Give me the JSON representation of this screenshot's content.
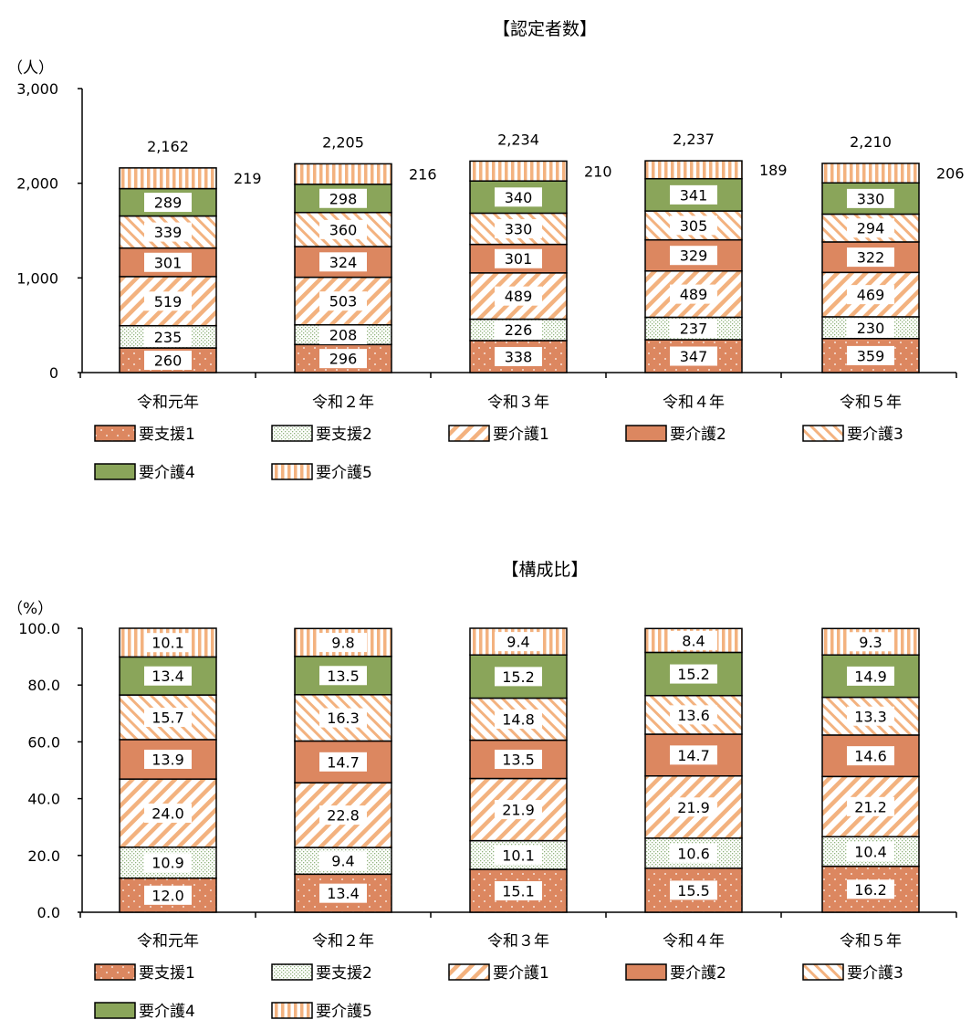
{
  "chart_data": [
    {
      "type": "bar",
      "stacked": true,
      "title": "【認定者数】",
      "unit_label": "（人）",
      "categories": [
        "令和元年",
        "令和２年",
        "令和３年",
        "令和４年",
        "令和５年"
      ],
      "ylim": [
        0,
        3000
      ],
      "yticks": [
        "0",
        "1,000",
        "2,000",
        "3,000"
      ],
      "ytick_values": [
        0,
        1000,
        2000,
        3000
      ],
      "totals": [
        "2,162",
        "2,205",
        "2,234",
        "2,237",
        "2,210"
      ],
      "top_value_position": "right-of-bar",
      "series": [
        {
          "name": "要支援1",
          "values": [
            260,
            296,
            338,
            347,
            359
          ]
        },
        {
          "name": "要支援2",
          "values": [
            235,
            208,
            226,
            237,
            230
          ]
        },
        {
          "name": "要介護1",
          "values": [
            519,
            503,
            489,
            489,
            469
          ]
        },
        {
          "name": "要介護2",
          "values": [
            301,
            324,
            301,
            329,
            322
          ]
        },
        {
          "name": "要介護3",
          "values": [
            339,
            360,
            330,
            305,
            294
          ]
        },
        {
          "name": "要介護4",
          "values": [
            289,
            298,
            340,
            341,
            330
          ]
        },
        {
          "name": "要介護5",
          "values": [
            219,
            216,
            210,
            189,
            206
          ]
        }
      ],
      "legend": "bottom"
    },
    {
      "type": "bar",
      "stacked": true,
      "title": "【構成比】",
      "unit_label": "（%）",
      "categories": [
        "令和元年",
        "令和２年",
        "令和３年",
        "令和４年",
        "令和５年"
      ],
      "ylim": [
        0,
        100
      ],
      "yticks": [
        "0.0",
        "20.0",
        "40.0",
        "60.0",
        "80.0",
        "100.0"
      ],
      "ytick_values": [
        0,
        20,
        40,
        60,
        80,
        100
      ],
      "top_value_position": "inside",
      "series": [
        {
          "name": "要支援1",
          "values": [
            12.0,
            13.4,
            15.1,
            15.5,
            16.2
          ]
        },
        {
          "name": "要支援2",
          "values": [
            10.9,
            9.4,
            10.1,
            10.6,
            10.4
          ]
        },
        {
          "name": "要介護1",
          "values": [
            24.0,
            22.8,
            21.9,
            21.9,
            21.2
          ]
        },
        {
          "name": "要介護2",
          "values": [
            13.9,
            14.7,
            13.5,
            14.7,
            14.6
          ]
        },
        {
          "name": "要介護3",
          "values": [
            15.7,
            16.3,
            14.8,
            13.6,
            13.3
          ]
        },
        {
          "name": "要介護4",
          "values": [
            13.4,
            13.5,
            15.2,
            15.2,
            14.9
          ]
        },
        {
          "name": "要介護5",
          "values": [
            10.1,
            9.8,
            9.4,
            8.4,
            9.3
          ]
        }
      ],
      "legend": "bottom"
    }
  ],
  "colors": {
    "orange": "#dc8760",
    "light_orange": "#f3b27f",
    "green": "#8aa55a",
    "dot_green": "#8fb27b",
    "outline": "#000000"
  }
}
